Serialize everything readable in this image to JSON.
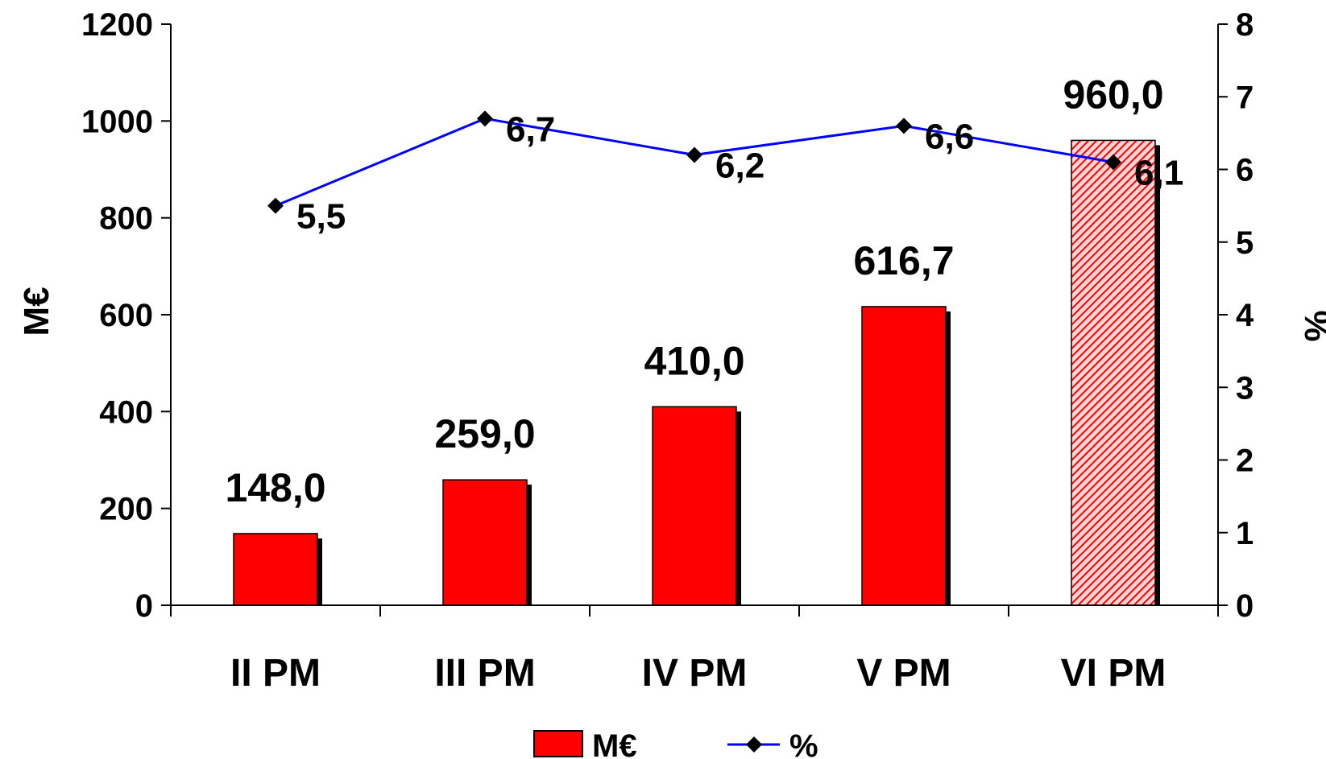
{
  "chart_data": {
    "type": "bar",
    "categories": [
      "II PM",
      "III PM",
      "IV PM",
      "V PM",
      "VI PM"
    ],
    "series": [
      {
        "name": "M€",
        "type": "bar",
        "axis": "left",
        "values": [
          148.0,
          259.0,
          410.0,
          616.7,
          960.0
        ],
        "labels": [
          "148,0",
          "259,0",
          "410,0",
          "616,7",
          "960,0"
        ],
        "color": "#ff0000",
        "hatched": [
          false,
          false,
          false,
          false,
          true
        ]
      },
      {
        "name": "%",
        "type": "line",
        "axis": "right",
        "values": [
          5.5,
          6.7,
          6.2,
          6.6,
          6.1
        ],
        "labels": [
          "5,5",
          "6,7",
          "6,2",
          "6,6",
          "6,1"
        ],
        "color": "#0000ff",
        "marker": "diamond"
      }
    ],
    "ylabel": "M€",
    "ylim": [
      0,
      1200
    ],
    "y_ticks": [
      "0",
      "200",
      "400",
      "600",
      "800",
      "1000",
      "1200"
    ],
    "y2label": "%",
    "y2lim": [
      0,
      8
    ],
    "y2_ticks": [
      "0",
      "1",
      "2",
      "3",
      "4",
      "5",
      "6",
      "7",
      "8"
    ],
    "grid": false,
    "legend_position": "bottom-center"
  }
}
